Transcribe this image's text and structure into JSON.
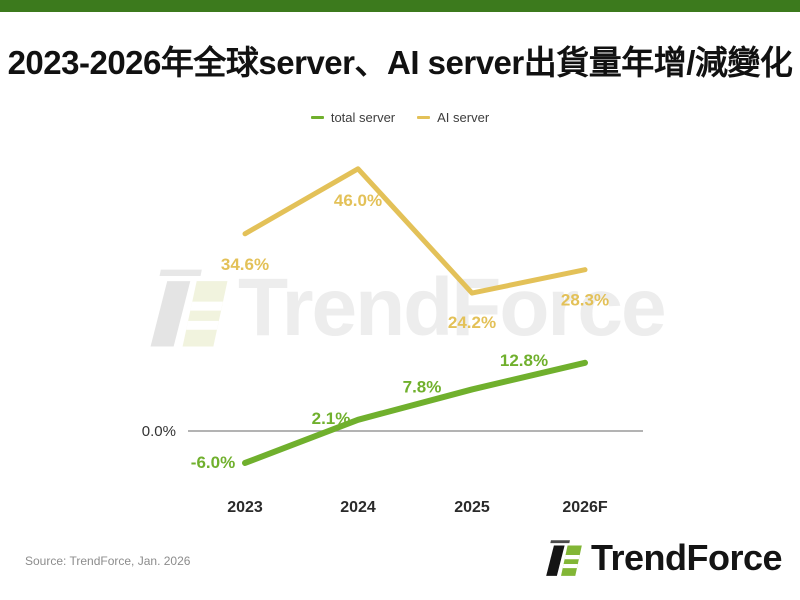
{
  "title": "2023-2026年全球server、AI server出貨量年增/減變化",
  "legend": {
    "items": [
      {
        "label": "total server",
        "color": "#70b02d"
      },
      {
        "label": "AI server",
        "color": "#e3c158"
      }
    ]
  },
  "chart_data": {
    "type": "line",
    "title": "2023-2026年全球server、AI server出貨量年增/減變化",
    "categories": [
      "2023",
      "2024",
      "2025",
      "2026F"
    ],
    "series": [
      {
        "name": "total server",
        "color": "#70b02d",
        "values": [
          -6.0,
          2.1,
          7.8,
          12.8
        ],
        "labels": [
          "-6.0%",
          "2.1%",
          "7.8%",
          "12.8%"
        ]
      },
      {
        "name": "AI server",
        "color": "#e3c158",
        "values": [
          34.6,
          46.0,
          24.2,
          28.3
        ],
        "labels": [
          "34.6%",
          "46.0%",
          "24.2%",
          "28.3%"
        ]
      }
    ],
    "zero_label": "0.0%",
    "xlabel": "",
    "ylabel": "",
    "grid": false,
    "legend_position": "top",
    "baseline": 0
  },
  "watermark": {
    "text": "TrendForce"
  },
  "footer": {
    "source": "Source: TrendForce, Jan. 2026",
    "logo_text": "TrendForce"
  },
  "colors": {
    "top_bar": "#3c7a1d",
    "total_server": "#70b02d",
    "ai_server": "#e3c158",
    "zero_line": "#9a9a9a",
    "axis_text": "#2a2a2a",
    "watermark": "#ededed",
    "source_text": "#8c8c8c"
  }
}
